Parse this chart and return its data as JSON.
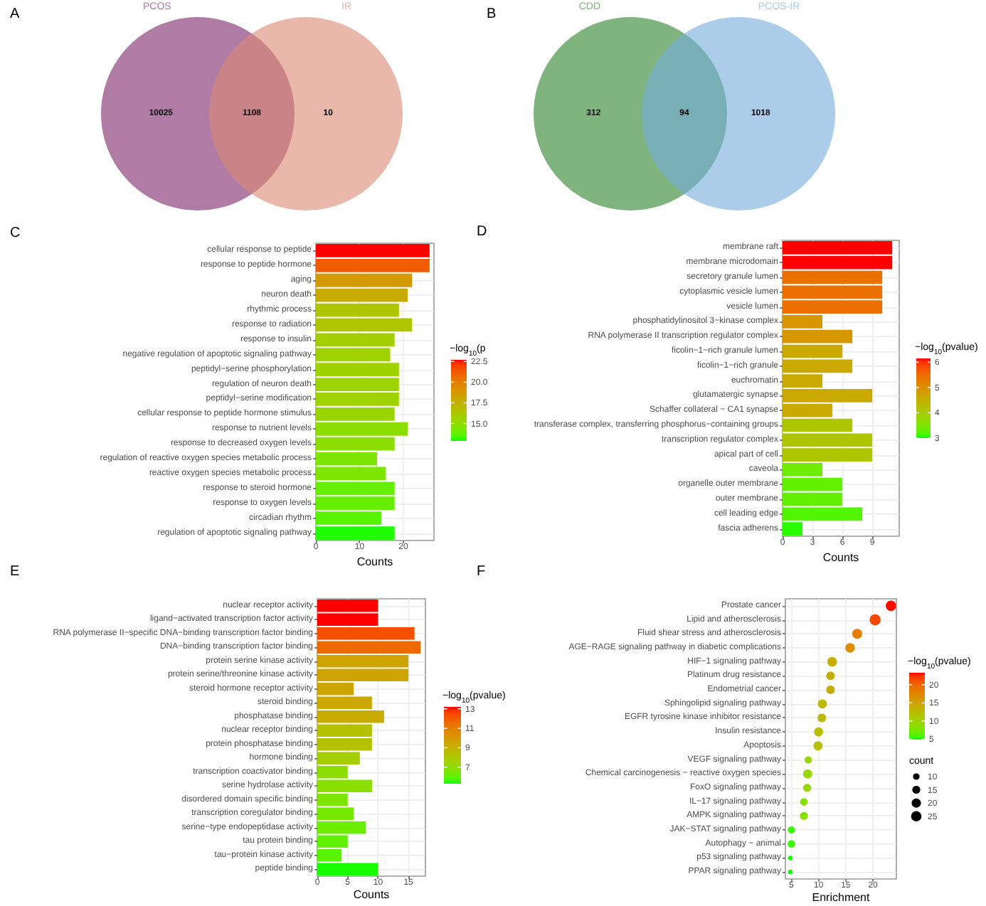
{
  "chart_data": [
    {
      "type": "other",
      "title": "A",
      "series": [
        {
          "name": "PCOS",
          "color": "#b07ba5"
        },
        {
          "name": "IR",
          "color": "#eab8ab"
        }
      ],
      "annotations": [
        "10025",
        "1108",
        "10"
      ]
    },
    {
      "type": "other",
      "title": "B",
      "series": [
        {
          "name": "CDD",
          "color": "#80b47e"
        },
        {
          "name": "PCOS-IR",
          "color": "#abcdea"
        }
      ],
      "annotations": [
        "312",
        "94",
        "1018"
      ]
    },
    {
      "type": "bar",
      "title": "C",
      "orientation": "horizontal",
      "categories": [
        "cellular response to peptide",
        "response to peptide hormone",
        "aging",
        "neuron death",
        "rhythmic process",
        "response to radiation",
        "response to insulin",
        "negative regulation of apoptotic signaling pathway",
        "peptidyl−serine phosphorylation",
        "regulation of neuron death",
        "peptidyl−serine modification",
        "cellular response to peptide hormone stimulus",
        "response to nutrient levels",
        "response to decreased oxygen levels",
        "regulation of reactive oxygen species metabolic process",
        "reactive oxygen species metabolic process",
        "response to steroid hormone",
        "response to oxygen levels",
        "circadian rhythm",
        "regulation of apoptotic signaling pathway"
      ],
      "values": [
        26,
        26,
        22,
        21,
        19,
        22,
        18,
        17,
        19,
        19,
        19,
        18,
        21,
        18,
        14,
        16,
        18,
        18,
        15,
        18
      ],
      "cvalues": [
        22.7,
        21.2,
        18.6,
        17.8,
        16.3,
        16.3,
        15.8,
        15.7,
        15.6,
        15.6,
        15.6,
        15.4,
        14.9,
        14.9,
        14.5,
        14.5,
        13.9,
        13.9,
        13.6,
        13.0
      ],
      "xlabel": "Counts",
      "xlim": [
        0,
        27
      ],
      "xticks": [
        0,
        10,
        20
      ],
      "clabel": "−log$_{10}$(p",
      "clim": [
        12.9,
        22.7
      ],
      "cticks": [
        {
          "value": 22.5,
          "label": "22.5"
        },
        {
          "value": 20,
          "label": "20.0"
        },
        {
          "value": 17.5,
          "label": "17.5"
        },
        {
          "value": 15,
          "label": "15.0"
        }
      ],
      "grid": true
    },
    {
      "type": "bar",
      "title": "D",
      "orientation": "horizontal",
      "categories": [
        "membrane raft",
        "membrane microdomain",
        "secretory granule lumen",
        "cytoplasmic vesicle lumen",
        "vesicle lumen",
        "phosphatidylinositol 3−kinase complex",
        "RNA polymerase II transcription regulator complex",
        "ficolin−1−rich granule lumen",
        "ficolin−1−rich granule",
        "euchromatin",
        "glutamatergic synapse",
        "Schaffer collateral − CA1 synapse",
        "transferase complex, transferring phosphorus−containing groups",
        "transcription regulator complex",
        "apical part of cell",
        "caveola",
        "organelle outer membrane",
        "outer membrane",
        "cell leading edge",
        "fascia adherens"
      ],
      "values": [
        11,
        11,
        10,
        10,
        10,
        4,
        7,
        6,
        7,
        4,
        9,
        5,
        7,
        9,
        9,
        4,
        6,
        6,
        8,
        2
      ],
      "cvalues": [
        6.15,
        6.15,
        5.45,
        5.45,
        5.45,
        4.9,
        4.9,
        4.6,
        4.6,
        4.6,
        4.6,
        4.6,
        4.1,
        4.1,
        4.1,
        3.4,
        3.3,
        3.3,
        3.2,
        3.05
      ],
      "xlabel": "Counts",
      "xlim": [
        0,
        11.7
      ],
      "xticks": [
        0,
        3,
        6,
        9
      ],
      "clabel": "−log$_{10}$(pvalue)",
      "clim": [
        3.0,
        6.15
      ],
      "cticks": [
        3,
        4,
        5,
        6
      ],
      "grid": true
    },
    {
      "type": "bar",
      "title": "E",
      "orientation": "horizontal",
      "categories": [
        "nuclear receptor activity",
        "ligand−activated transcription factor activity",
        "RNA polymerase II−specific DNA−binding transcription factor binding",
        "DNA−binding transcription factor binding",
        "protein serine kinase activity",
        "protein serine/threonine kinase activity",
        "steroid hormone receptor activity",
        "steroid binding",
        "phosphatase binding",
        "nuclear receptor binding",
        "protein phosphatase binding",
        "hormone binding",
        "transcription coactivator binding",
        "serine hydrolase activity",
        "disordered domain specific binding",
        "transcription coregulator binding",
        "serine−type endopeptidase activity",
        "tau protein binding",
        "tau−protein kinase activity",
        "peptide binding"
      ],
      "values": [
        10,
        10,
        16,
        17,
        15,
        15,
        6,
        9,
        11,
        9,
        9,
        7,
        5,
        9,
        5,
        6,
        8,
        5,
        4,
        10
      ],
      "cvalues": [
        13.2,
        13.2,
        12.3,
        11.6,
        9.6,
        9.6,
        9.5,
        9.4,
        9.2,
        8.3,
        8.3,
        7.7,
        7.0,
        6.9,
        6.6,
        6.4,
        6.2,
        6.0,
        5.9,
        5.35
      ],
      "xlabel": "Counts",
      "xlim": [
        0,
        17.8
      ],
      "xticks": [
        0,
        5,
        10,
        15
      ],
      "clabel": "−log$_{10}$(pvalue)",
      "clim": [
        5.3,
        13.2
      ],
      "cticks": [
        7,
        9,
        11,
        13
      ],
      "grid": true
    },
    {
      "type": "bubble",
      "title": "F",
      "orientation": "horizontal",
      "categories": [
        "Prostate cancer",
        "Lipid and atherosclerosis",
        "Fluid shear stress and atherosclerosis",
        "AGE−RAGE signaling pathway in diabetic complications",
        "HIF−1 signaling pathway",
        "Platinum drug resistance",
        "Endometrial cancer",
        "Sphingolipid signaling pathway",
        "EGFR tyrosine kinase inhibitor resistance",
        "Insulin resistance",
        "Apoptosis",
        "VEGF signaling pathway",
        "Chemical carcinogenesis − reactive oxygen species",
        "FoxO signaling pathway",
        "IL−17 signaling pathway",
        "AMPK signaling pathway",
        "JAK−STAT signaling pathway",
        "Autophagy − animal",
        "p53 signaling pathway",
        "PPAR signaling pathway"
      ],
      "values": [
        23.3,
        20.4,
        17.1,
        15.8,
        12.5,
        12.2,
        12.2,
        10.7,
        10.6,
        10.0,
        9.9,
        8.1,
        8.0,
        7.9,
        7.3,
        7.3,
        5.0,
        5.0,
        4.8,
        4.8
      ],
      "sizes": [
        25,
        28,
        23,
        21,
        21,
        17,
        17,
        19,
        17,
        19,
        19,
        12,
        19,
        15,
        13,
        15,
        12,
        13,
        5,
        5
      ],
      "size_legend": [
        10,
        15,
        20,
        25
      ],
      "legend_title": "count",
      "cvalues": [
        23.2,
        21.5,
        18.1,
        17,
        14,
        13.8,
        13.8,
        12.6,
        12.4,
        12,
        12,
        9.8,
        9.5,
        9.5,
        8.5,
        8.5,
        5.5,
        5.5,
        5.0,
        4.95
      ],
      "xlabel": "Enrichment",
      "xlim": [
        3.9,
        24.3
      ],
      "xticks": [
        5,
        10,
        15,
        20
      ],
      "clabel": "−log$_{10}$(pvalue)",
      "clim": [
        4.9,
        23.3
      ],
      "cticks": [
        5,
        10,
        15,
        20
      ],
      "marker": "circle",
      "grid": true
    }
  ]
}
